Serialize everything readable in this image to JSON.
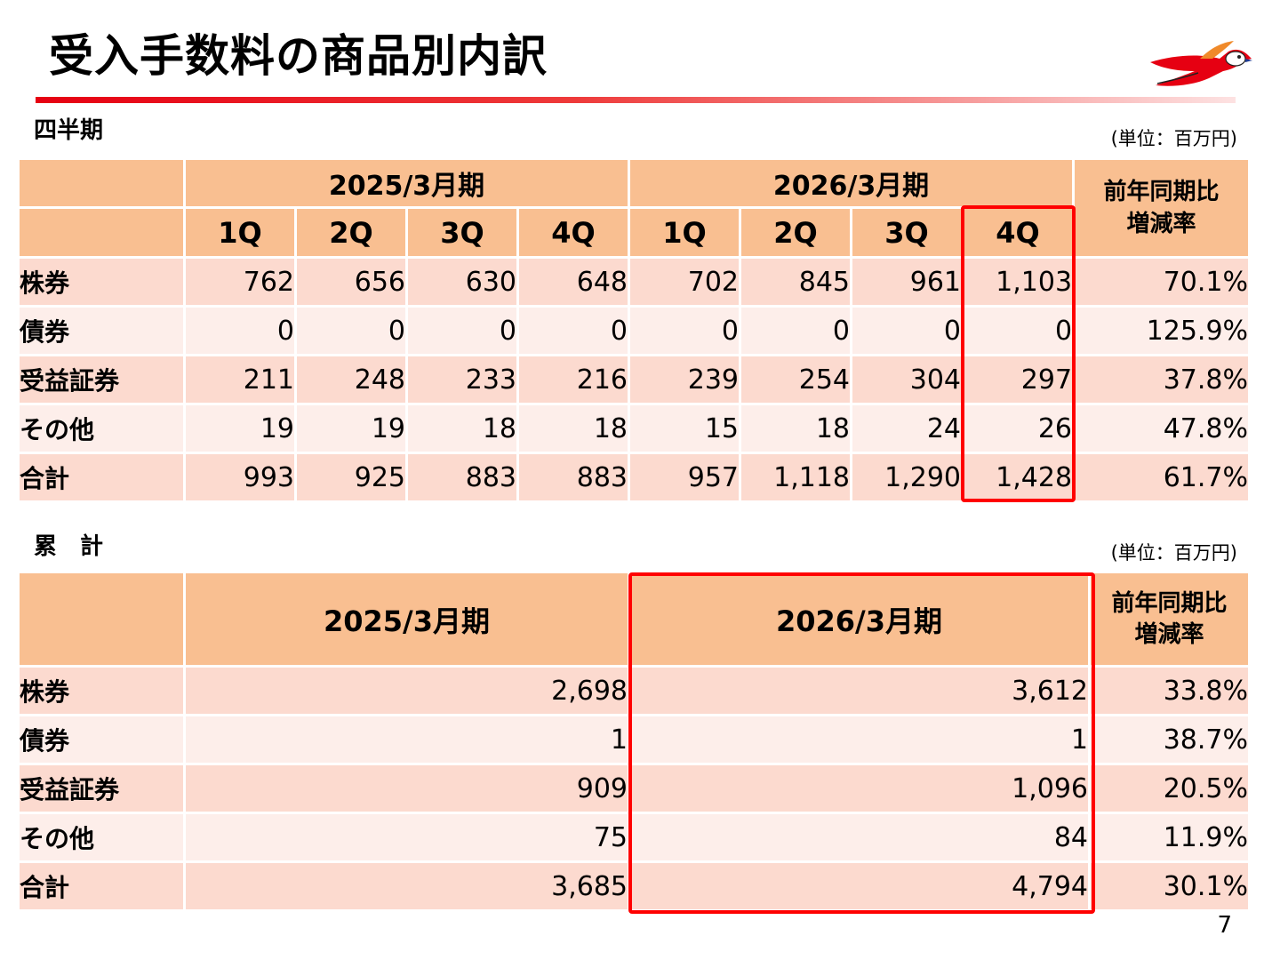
{
  "title": "受入手数料の商品別内訳",
  "quarterly": {
    "section_label": "四半期",
    "unit": "(単位：百万円)",
    "periods": [
      "2025/3月期",
      "2026/3月期"
    ],
    "yoy_header": [
      "前年同期比",
      "増減率"
    ],
    "quarters": [
      "1Q",
      "2Q",
      "3Q",
      "4Q",
      "1Q",
      "2Q",
      "3Q",
      "4Q"
    ],
    "rows": [
      {
        "label": "株券",
        "values": [
          "762",
          "656",
          "630",
          "648",
          "702",
          "845",
          "961",
          "1,103"
        ],
        "yoy": "70.1%"
      },
      {
        "label": "債券",
        "values": [
          "0",
          "0",
          "0",
          "0",
          "0",
          "0",
          "0",
          "0"
        ],
        "yoy": "125.9%"
      },
      {
        "label": "受益証券",
        "values": [
          "211",
          "248",
          "233",
          "216",
          "239",
          "254",
          "304",
          "297"
        ],
        "yoy": "37.8%"
      },
      {
        "label": "その他",
        "values": [
          "19",
          "19",
          "18",
          "18",
          "15",
          "18",
          "24",
          "26"
        ],
        "yoy": "47.8%"
      },
      {
        "label": "合計",
        "values": [
          "993",
          "925",
          "883",
          "883",
          "957",
          "1,118",
          "1,290",
          "1,428"
        ],
        "yoy": "61.7%"
      }
    ]
  },
  "cumulative": {
    "section_label": "累　計",
    "unit": "(単位：百万円)",
    "periods": [
      "2025/3月期",
      "2026/3月期"
    ],
    "yoy_header": [
      "前年同期比",
      "増減率"
    ],
    "rows": [
      {
        "label": "株券",
        "values": [
          "2,698",
          "3,612"
        ],
        "yoy": "33.8%"
      },
      {
        "label": "債券",
        "values": [
          "1",
          "1"
        ],
        "yoy": "38.7%"
      },
      {
        "label": "受益証券",
        "values": [
          "909",
          "1,096"
        ],
        "yoy": "20.5%"
      },
      {
        "label": "その他",
        "values": [
          "75",
          "84"
        ],
        "yoy": "11.9%"
      },
      {
        "label": "合計",
        "values": [
          "3,685",
          "4,794"
        ],
        "yoy": "30.1%"
      }
    ]
  },
  "page_number": "7",
  "colors": {
    "header_bg": "#f9bf91",
    "row_dark": "#fcdacf",
    "row_light": "#fdeeea",
    "highlight": "#ff0000",
    "accent_line": "#e60012"
  },
  "logo_icon": "bird-logo-icon"
}
